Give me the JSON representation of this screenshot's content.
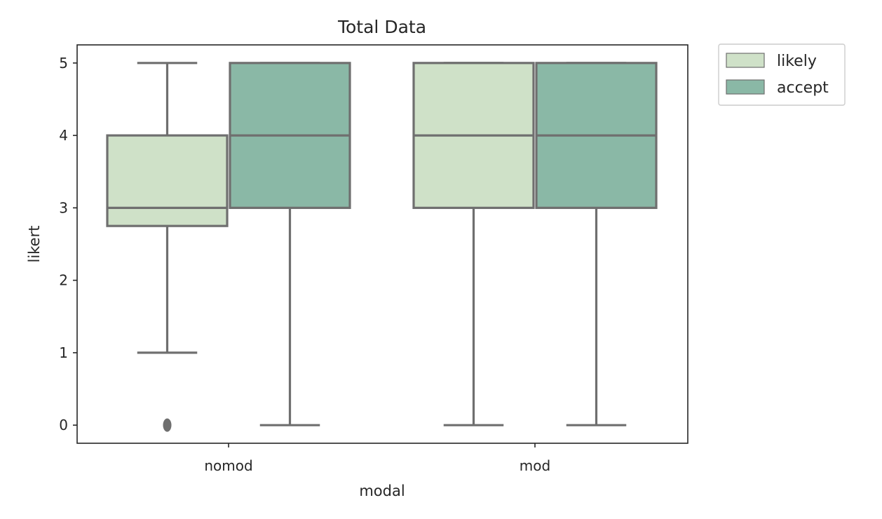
{
  "chart_data": {
    "type": "box",
    "title": "Total Data",
    "xlabel": "modal",
    "ylabel": "likert",
    "categories": [
      "nomod",
      "mod"
    ],
    "ylim": [
      -0.25,
      5.25
    ],
    "yticks": [
      0,
      1,
      2,
      3,
      4,
      5
    ],
    "grid": false,
    "legend_position": "outside-top-right",
    "edge_color": "#6f6f6f",
    "series": [
      {
        "name": "likely",
        "color": "#cfe1c8",
        "boxes": [
          {
            "category": "nomod",
            "whisker_low": 1,
            "q1": 2.75,
            "median": 3,
            "q3": 4,
            "whisker_high": 5,
            "outliers": [
              0
            ]
          },
          {
            "category": "mod",
            "whisker_low": 0,
            "q1": 3,
            "median": 4,
            "q3": 5,
            "whisker_high": 5,
            "outliers": []
          }
        ]
      },
      {
        "name": "accept",
        "color": "#8ab8a6",
        "boxes": [
          {
            "category": "nomod",
            "whisker_low": 0,
            "q1": 3,
            "median": 4,
            "q3": 5,
            "whisker_high": 5,
            "outliers": []
          },
          {
            "category": "mod",
            "whisker_low": 0,
            "q1": 3,
            "median": 4,
            "q3": 5,
            "whisker_high": 5,
            "outliers": []
          }
        ]
      }
    ]
  }
}
